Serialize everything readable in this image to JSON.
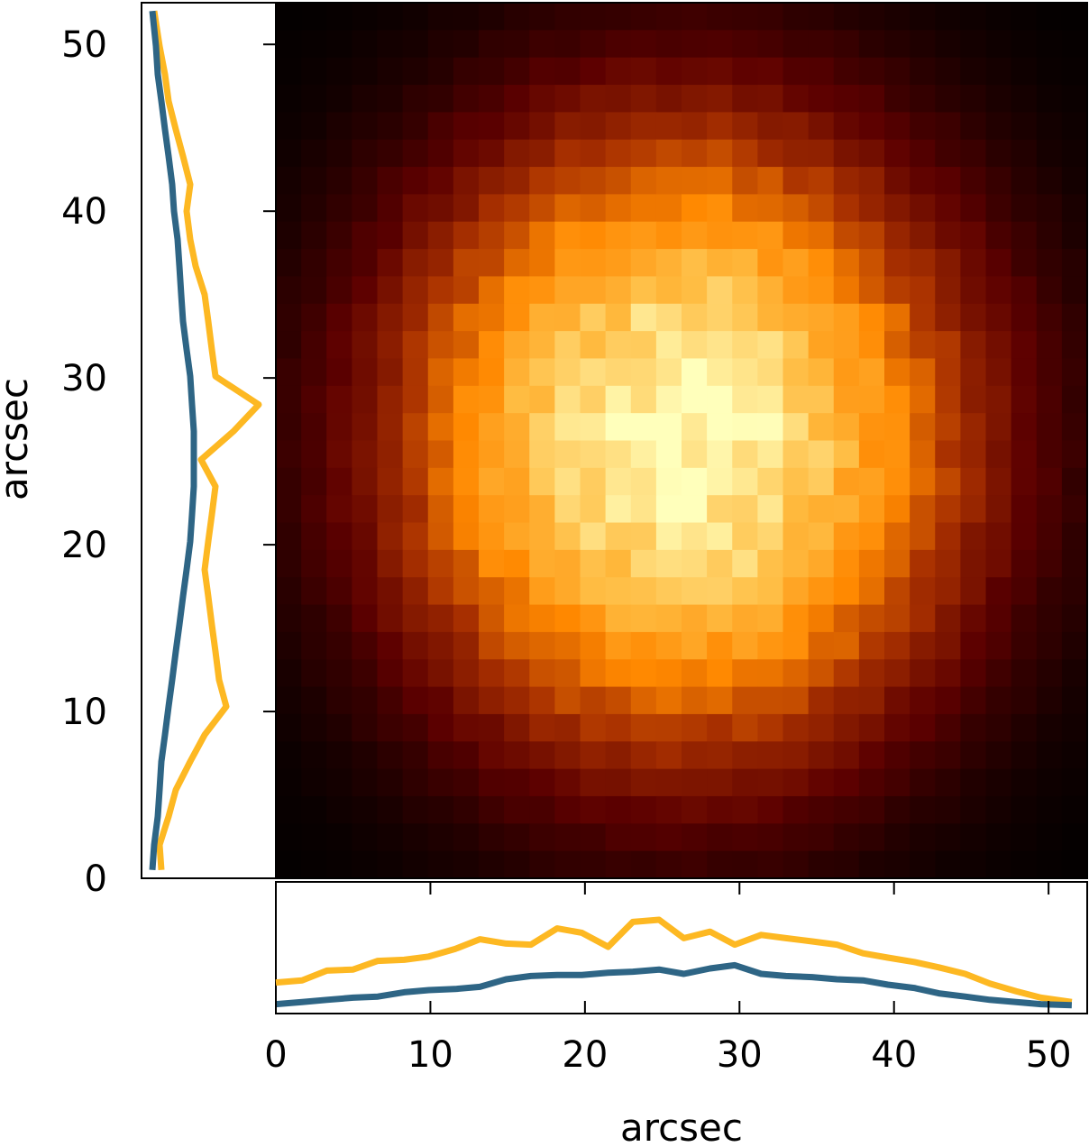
{
  "chart_data": {
    "type": "heatmap",
    "title": "",
    "xlabel": "arcsec",
    "ylabel": "arcsec",
    "xlim": [
      0,
      52.5
    ],
    "ylim": [
      0,
      52.5
    ],
    "x_ticks": [
      "0",
      "10",
      "20",
      "30",
      "40",
      "50"
    ],
    "y_ticks": [
      "0",
      "10",
      "20",
      "30",
      "40",
      "50"
    ],
    "grid_size": 32,
    "colormap": [
      "#000000",
      "#5c0000",
      "#a83000",
      "#ff8800",
      "#ffbb40",
      "#ffffbb"
    ],
    "profile_colors": [
      "#2e6585",
      "#fdb822"
    ],
    "bottom_profiles": {
      "x": [
        0,
        1.7,
        3.3,
        5,
        6.6,
        8.3,
        9.9,
        11.6,
        13.2,
        14.9,
        16.5,
        18.2,
        19.8,
        21.5,
        23.1,
        24.8,
        26.4,
        28.1,
        29.7,
        31.4,
        33,
        34.7,
        36.3,
        38,
        39.6,
        41.3,
        42.9,
        44.6,
        46.2,
        47.9,
        49.5,
        51.5
      ],
      "series": [
        {
          "values": [
            0.22,
            0.24,
            0.33,
            0.34,
            0.42,
            0.43,
            0.46,
            0.53,
            0.62,
            0.58,
            0.57,
            0.72,
            0.68,
            0.55,
            0.78,
            0.8,
            0.63,
            0.69,
            0.57,
            0.66,
            0.63,
            0.6,
            0.57,
            0.49,
            0.45,
            0.41,
            0.36,
            0.3,
            0.21,
            0.14,
            0.08,
            0.04
          ]
        },
        {
          "values": [
            0.02,
            0.04,
            0.06,
            0.08,
            0.09,
            0.13,
            0.15,
            0.16,
            0.18,
            0.25,
            0.28,
            0.29,
            0.29,
            0.31,
            0.32,
            0.34,
            0.3,
            0.35,
            0.38,
            0.3,
            0.28,
            0.27,
            0.25,
            0.24,
            0.2,
            0.17,
            0.12,
            0.09,
            0.06,
            0.04,
            0.02,
            0.01
          ]
        }
      ]
    },
    "left_profiles": {
      "y": [
        0.5,
        2,
        3.7,
        5.3,
        7,
        8.6,
        10.3,
        11.9,
        13.6,
        15.2,
        16.9,
        18.5,
        20.2,
        21.8,
        23.5,
        25.1,
        26.8,
        28.4,
        30.1,
        31.7,
        33.4,
        35,
        36.7,
        38.3,
        40,
        41.6,
        43.3,
        44.9,
        46.6,
        48.2,
        49.9,
        52
      ],
      "series": [
        {
          "values": [
            0.06,
            0.05,
            0.1,
            0.14,
            0.22,
            0.3,
            0.42,
            0.38,
            0.36,
            0.34,
            0.32,
            0.3,
            0.32,
            0.34,
            0.36,
            0.28,
            0.46,
            0.6,
            0.36,
            0.34,
            0.32,
            0.3,
            0.25,
            0.22,
            0.2,
            0.22,
            0.18,
            0.14,
            0.1,
            0.08,
            0.05,
            0.02
          ]
        },
        {
          "values": [
            0.01,
            0.02,
            0.04,
            0.05,
            0.06,
            0.08,
            0.1,
            0.12,
            0.14,
            0.16,
            0.18,
            0.2,
            0.22,
            0.23,
            0.24,
            0.24,
            0.24,
            0.23,
            0.22,
            0.2,
            0.18,
            0.17,
            0.16,
            0.15,
            0.13,
            0.12,
            0.1,
            0.08,
            0.06,
            0.04,
            0.03,
            0.01
          ]
        }
      ]
    }
  }
}
